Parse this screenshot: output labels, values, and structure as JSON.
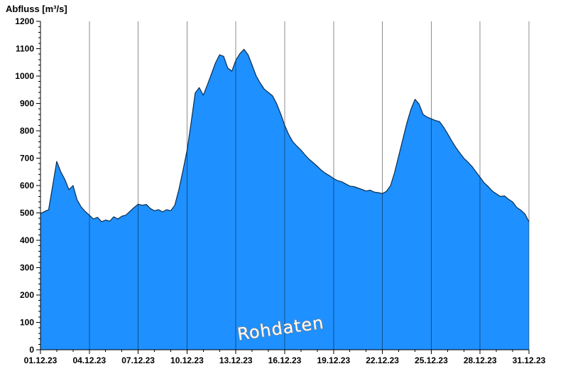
{
  "chart_data": {
    "type": "area",
    "title": "Abfluss [m³/s]",
    "ylabel": "Abfluss [m³/s]",
    "xlabel": "",
    "watermark": "Rohdaten",
    "legend": "none",
    "grid": "vertical",
    "xlim": [
      1,
      31
    ],
    "ylim": [
      0,
      1200
    ],
    "y_tick_step": 100,
    "y_minor_step": 20,
    "x_tick_labels": [
      "01.12.23",
      "04.12.23",
      "07.12.23",
      "10.12.23",
      "13.12.23",
      "16.12.23",
      "19.12.23",
      "22.12.23",
      "25.12.23",
      "28.12.23",
      "31.12.23"
    ],
    "x_tick_days": [
      1,
      4,
      7,
      10,
      13,
      16,
      19,
      22,
      25,
      28,
      31
    ],
    "x_start": 1,
    "x_step": 0.25,
    "values": [
      498,
      505,
      512,
      600,
      688,
      650,
      622,
      585,
      600,
      548,
      522,
      505,
      492,
      478,
      484,
      468,
      474,
      470,
      486,
      478,
      488,
      492,
      506,
      520,
      532,
      528,
      531,
      516,
      508,
      512,
      504,
      512,
      508,
      528,
      585,
      655,
      728,
      828,
      938,
      958,
      930,
      968,
      1008,
      1048,
      1078,
      1072,
      1030,
      1018,
      1058,
      1082,
      1098,
      1078,
      1040,
      1000,
      974,
      952,
      940,
      928,
      900,
      862,
      820,
      786,
      760,
      744,
      730,
      712,
      696,
      684,
      670,
      656,
      645,
      636,
      626,
      618,
      614,
      606,
      598,
      596,
      591,
      586,
      580,
      583,
      576,
      574,
      571,
      579,
      600,
      648,
      708,
      768,
      828,
      878,
      915,
      898,
      860,
      850,
      844,
      838,
      834,
      814,
      790,
      764,
      740,
      720,
      700,
      686,
      670,
      650,
      630,
      610,
      596,
      580,
      570,
      560,
      562,
      550,
      540,
      520,
      510,
      496,
      468
    ],
    "colors": {
      "fill": "#1E90FF",
      "outline": "#0b2e4f",
      "axis": "#000000",
      "grid": "#000000",
      "grid_opacity": 0.45,
      "watermark_fill": "#ffffff",
      "watermark_outline": "#8a8a8a",
      "background": "#ffffff"
    }
  }
}
